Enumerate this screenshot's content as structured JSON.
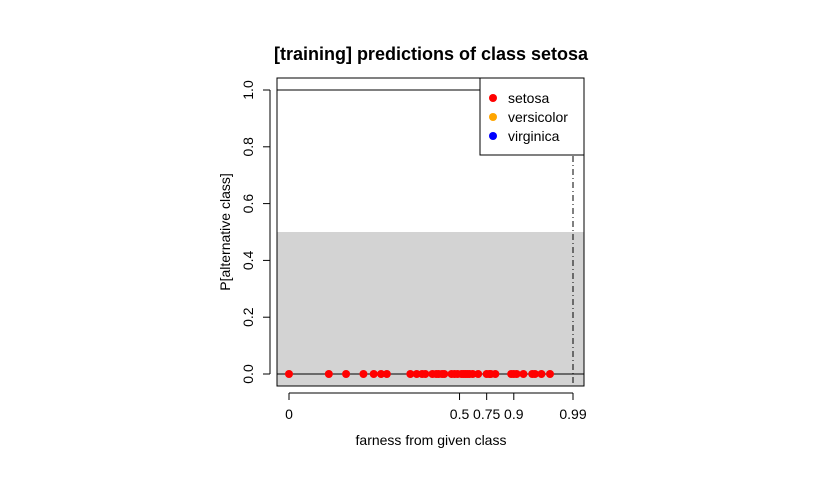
{
  "chart_data": {
    "type": "scatter",
    "title": "[training] predictions of class setosa",
    "xlabel": "farness from given class",
    "ylabel": "P[alternative class]",
    "x_scale": "logit",
    "xlim": [
      0.0,
      0.995
    ],
    "ylim": [
      0,
      1.05
    ],
    "x_ticks": [
      {
        "value": 0.001,
        "label": "0"
      },
      {
        "value": 0.5,
        "label": "0.5"
      },
      {
        "value": 0.75,
        "label": "0.75"
      },
      {
        "value": 0.9,
        "label": "0.9"
      },
      {
        "value": 0.99,
        "label": "0.99"
      }
    ],
    "y_ticks": [
      {
        "value": 0.0,
        "label": "0.0"
      },
      {
        "value": 0.2,
        "label": "0.2"
      },
      {
        "value": 0.4,
        "label": "0.4"
      },
      {
        "value": 0.6,
        "label": "0.6"
      },
      {
        "value": 0.8,
        "label": "0.8"
      },
      {
        "value": 1.0,
        "label": "1.0"
      }
    ],
    "shaded_region": {
      "y_from": 0.0,
      "y_to": 0.5,
      "color": "#d3d3d3"
    },
    "reference_lines": [
      {
        "orientation": "horizontal",
        "y": 1.0,
        "style": "solid"
      },
      {
        "orientation": "horizontal",
        "y": 0.0,
        "style": "solid"
      },
      {
        "orientation": "vertical",
        "x": 0.99,
        "style": "dashdot"
      }
    ],
    "legend": {
      "position": "top-right",
      "entries": [
        {
          "label": "setosa",
          "color": "#ff0000"
        },
        {
          "label": "versicolor",
          "color": "#ffa500"
        },
        {
          "label": "virginica",
          "color": "#0000ff"
        }
      ]
    },
    "series": [
      {
        "name": "setosa",
        "color": "#ff0000",
        "points": [
          {
            "x": 0.001,
            "y": 0
          },
          {
            "x": 0.005,
            "y": 0
          },
          {
            "x": 0.01,
            "y": 0
          },
          {
            "x": 0.02,
            "y": 0
          },
          {
            "x": 0.03,
            "y": 0
          },
          {
            "x": 0.04,
            "y": 0
          },
          {
            "x": 0.05,
            "y": 0
          },
          {
            "x": 0.12,
            "y": 0
          },
          {
            "x": 0.15,
            "y": 0
          },
          {
            "x": 0.18,
            "y": 0
          },
          {
            "x": 0.2,
            "y": 0
          },
          {
            "x": 0.25,
            "y": 0
          },
          {
            "x": 0.28,
            "y": 0
          },
          {
            "x": 0.3,
            "y": 0
          },
          {
            "x": 0.33,
            "y": 0
          },
          {
            "x": 0.35,
            "y": 0
          },
          {
            "x": 0.42,
            "y": 0
          },
          {
            "x": 0.45,
            "y": 0
          },
          {
            "x": 0.48,
            "y": 0
          },
          {
            "x": 0.52,
            "y": 0
          },
          {
            "x": 0.54,
            "y": 0
          },
          {
            "x": 0.56,
            "y": 0
          },
          {
            "x": 0.58,
            "y": 0
          },
          {
            "x": 0.6,
            "y": 0
          },
          {
            "x": 0.63,
            "y": 0
          },
          {
            "x": 0.68,
            "y": 0
          },
          {
            "x": 0.75,
            "y": 0
          },
          {
            "x": 0.77,
            "y": 0
          },
          {
            "x": 0.78,
            "y": 0
          },
          {
            "x": 0.81,
            "y": 0
          },
          {
            "x": 0.89,
            "y": 0
          },
          {
            "x": 0.9,
            "y": 0
          },
          {
            "x": 0.91,
            "y": 0
          },
          {
            "x": 0.93,
            "y": 0
          },
          {
            "x": 0.95,
            "y": 0
          },
          {
            "x": 0.955,
            "y": 0
          },
          {
            "x": 0.965,
            "y": 0
          },
          {
            "x": 0.975,
            "y": 0
          }
        ]
      }
    ]
  }
}
